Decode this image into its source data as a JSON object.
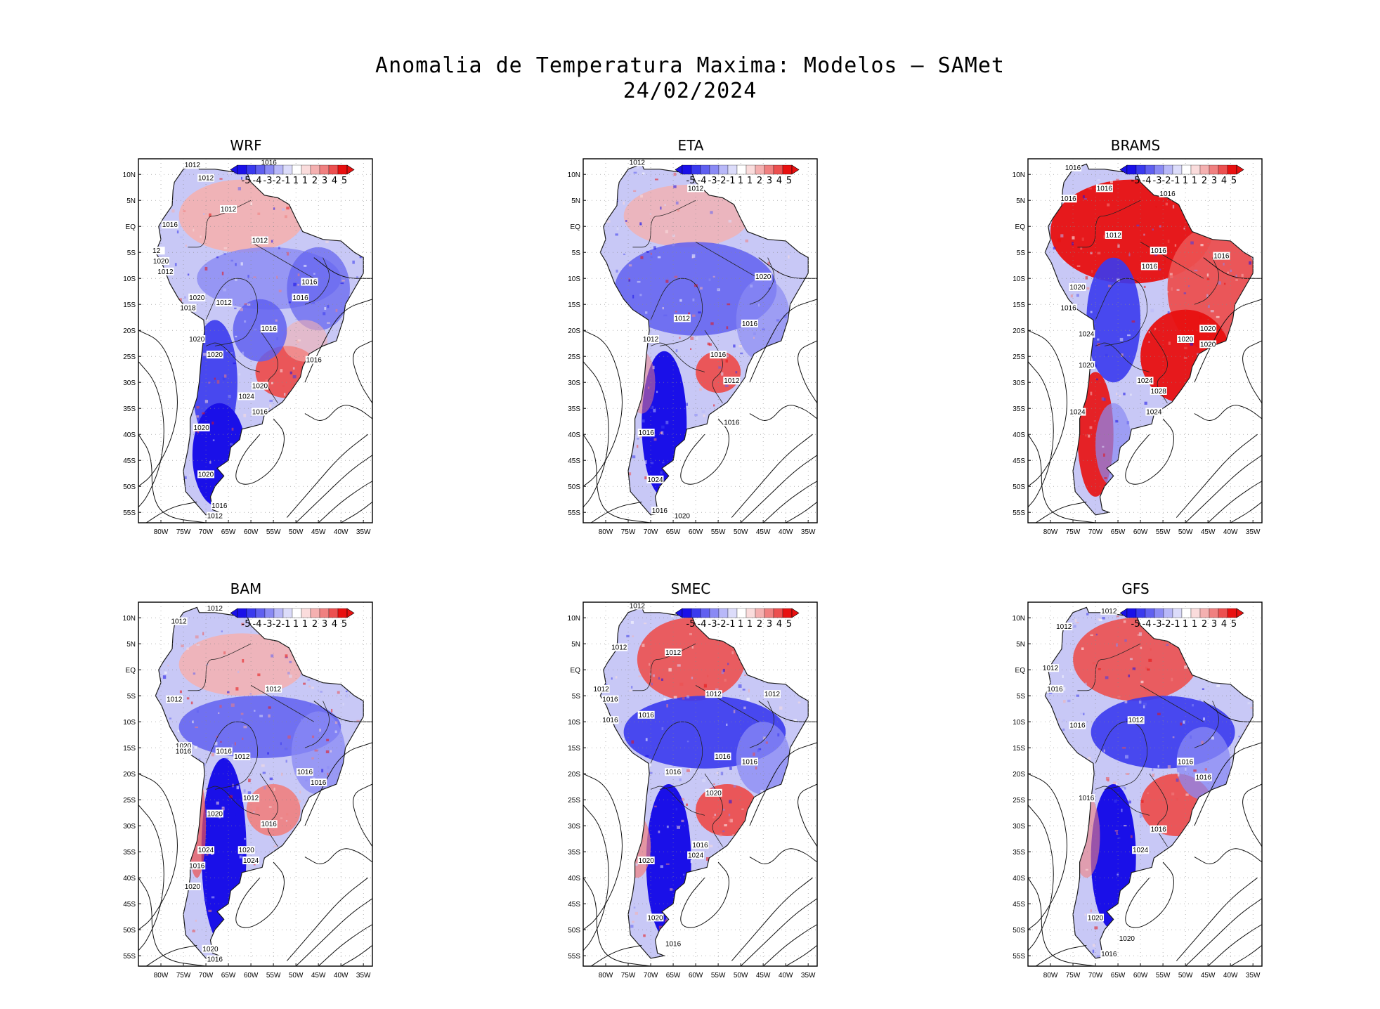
{
  "title_line1": "Anomalia de Temperatura Maxima: Modelos — SAMet",
  "title_line2": "24/02/2024",
  "lat_labels": [
    "10N",
    "5N",
    "EQ",
    "5S",
    "10S",
    "15S",
    "20S",
    "25S",
    "30S",
    "35S",
    "40S",
    "45S",
    "50S",
    "55S"
  ],
  "lon_labels": [
    "80W",
    "75W",
    "70W",
    "65W",
    "60W",
    "55W",
    "50W",
    "45W",
    "40W",
    "35W"
  ],
  "colorbar": {
    "labels": [
      "-5",
      "-4",
      "-3",
      "-2",
      "-1",
      "1",
      "1",
      "2",
      "3",
      "4",
      "5"
    ],
    "colors": [
      "#1a10e8",
      "#3a3aee",
      "#6060f0",
      "#8a8af4",
      "#b8b8f8",
      "#dcdcfa",
      "#ffffff",
      "#fadcdc",
      "#f4b0b0",
      "#f08080",
      "#ec5050",
      "#e81010"
    ]
  },
  "panels": [
    {
      "name": "WRF",
      "isobars": [
        "1012",
        "1016",
        "1012",
        "1012",
        "1016",
        "1012",
        "12",
        "1020",
        "1012",
        "1016",
        "1020",
        "1012",
        "1018",
        "1016",
        "1020",
        "1016",
        "1020",
        "1016",
        "1020",
        "1024",
        "1016",
        "1020",
        "1020",
        "1016",
        "1012"
      ]
    },
    {
      "name": "ETA",
      "isobars": [
        "1012",
        "1012",
        "1012",
        "1012",
        "1016",
        "1012",
        "1016",
        "1016",
        "1024",
        "1016",
        "1020",
        "1020",
        "1016"
      ]
    },
    {
      "name": "BRAMS",
      "isobars": [
        "1016",
        "1016",
        "1016",
        "1016",
        "1012",
        "1016",
        "1016",
        "1016",
        "1020",
        "1016",
        "1024",
        "1020",
        "1020",
        "1020",
        "1020",
        "1024",
        "1028",
        "1024",
        "1024"
      ]
    },
    {
      "name": "BAM",
      "isobars": [
        "1012",
        "1012",
        "1012",
        "1012",
        "1020",
        "1016",
        "1016",
        "1012",
        "1016",
        "1016",
        "1012",
        "1020",
        "1016",
        "1024",
        "1020",
        "1024",
        "1016",
        "1020",
        "1020",
        "1016"
      ]
    },
    {
      "name": "SMEC",
      "isobars": [
        "1012",
        "1012",
        "1012",
        "1012",
        "1016",
        "1016",
        "1012",
        "1012",
        "1016",
        "1016",
        "1016",
        "1016",
        "1020",
        "1016",
        "1024",
        "1020",
        "1020",
        "1016"
      ]
    },
    {
      "name": "GFS",
      "isobars": [
        "1012",
        "1012",
        "1012",
        "1016",
        "1012",
        "1016",
        "1016",
        "1016",
        "1016",
        "1016",
        "1024",
        "1020",
        "1020",
        "1016"
      ]
    }
  ]
}
